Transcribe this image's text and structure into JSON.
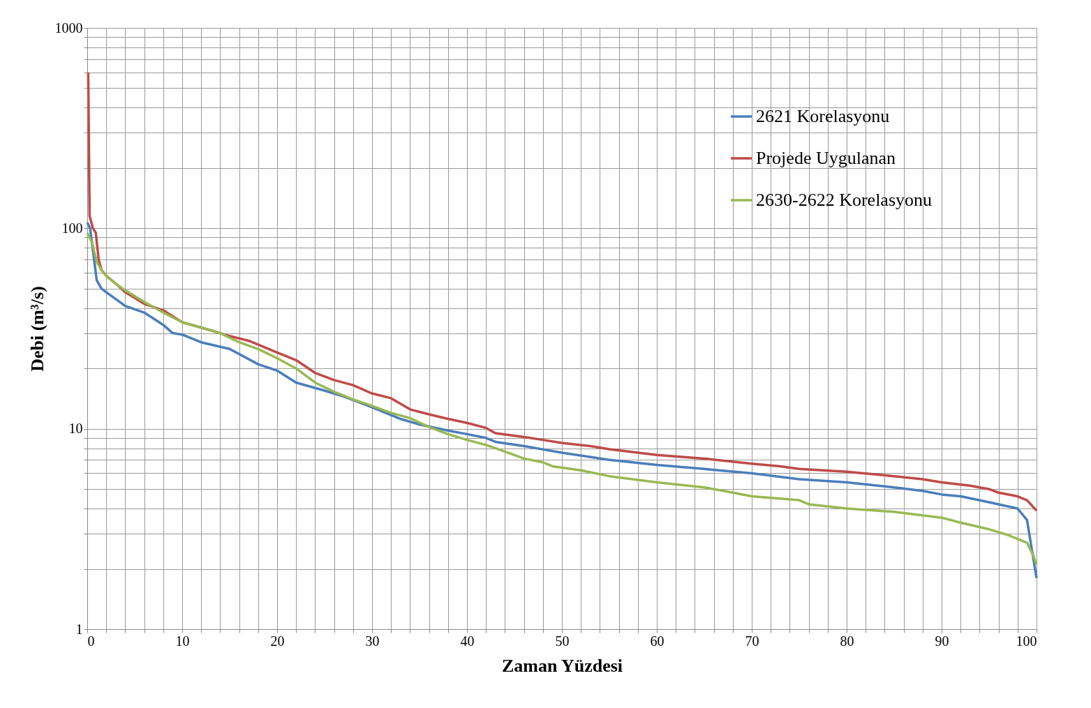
{
  "chart_data": {
    "type": "line",
    "xlabel": "Zaman Yüzdesi",
    "ylabel": "Debi (m³/s)",
    "log": "y",
    "grid": true,
    "legend": "top right",
    "line_style": "solid",
    "marker": "none",
    "xlim": [
      0,
      100
    ],
    "ylim": [
      1,
      1000
    ],
    "xticks": [
      0,
      {
        "value": 2,
        "label": null
      },
      {
        "value": 4,
        "label": null
      },
      {
        "value": 6,
        "label": null
      },
      {
        "value": 8,
        "label": null
      },
      10,
      {
        "value": 12,
        "label": null
      },
      {
        "value": 14,
        "label": null
      },
      {
        "value": 16,
        "label": null
      },
      {
        "value": 18,
        "label": null
      },
      20,
      {
        "value": 22,
        "label": null
      },
      {
        "value": 24,
        "label": null
      },
      {
        "value": 26,
        "label": null
      },
      {
        "value": 28,
        "label": null
      },
      30,
      {
        "value": 32,
        "label": null
      },
      {
        "value": 34,
        "label": null
      },
      {
        "value": 36,
        "label": null
      },
      {
        "value": 38,
        "label": null
      },
      40,
      {
        "value": 42,
        "label": null
      },
      {
        "value": 44,
        "label": null
      },
      {
        "value": 46,
        "label": null
      },
      {
        "value": 48,
        "label": null
      },
      50,
      {
        "value": 52,
        "label": null
      },
      {
        "value": 54,
        "label": null
      },
      {
        "value": 56,
        "label": null
      },
      {
        "value": 58,
        "label": null
      },
      60,
      {
        "value": 62,
        "label": null
      },
      {
        "value": 64,
        "label": null
      },
      {
        "value": 66,
        "label": null
      },
      {
        "value": 68,
        "label": null
      },
      70,
      {
        "value": 72,
        "label": null
      },
      {
        "value": 74,
        "label": null
      },
      {
        "value": 76,
        "label": null
      },
      {
        "value": 78,
        "label": null
      },
      80,
      {
        "value": 82,
        "label": null
      },
      {
        "value": 84,
        "label": null
      },
      {
        "value": 86,
        "label": null
      },
      {
        "value": 88,
        "label": null
      },
      90,
      {
        "value": 92,
        "label": null
      },
      {
        "value": 94,
        "label": null
      },
      {
        "value": 96,
        "label": null
      },
      {
        "value": 98,
        "label": null
      },
      100
    ],
    "yticks": [
      1,
      {
        "value": 2,
        "label": null
      },
      {
        "value": 3,
        "label": null
      },
      {
        "value": 4,
        "label": null
      },
      {
        "value": 5,
        "label": null
      },
      {
        "value": 6,
        "label": null
      },
      {
        "value": 7,
        "label": null
      },
      {
        "value": 8,
        "label": null
      },
      {
        "value": 9,
        "label": null
      },
      10,
      {
        "value": 20,
        "label": null
      },
      {
        "value": 30,
        "label": null
      },
      {
        "value": 40,
        "label": null
      },
      {
        "value": 50,
        "label": null
      },
      {
        "value": 60,
        "label": null
      },
      {
        "value": 70,
        "label": null
      },
      {
        "value": 80,
        "label": null
      },
      {
        "value": 90,
        "label": null
      },
      100,
      {
        "value": 200,
        "label": null
      },
      {
        "value": 300,
        "label": null
      },
      {
        "value": 400,
        "label": null
      },
      {
        "value": 500,
        "label": null
      },
      {
        "value": 600,
        "label": null
      },
      {
        "value": 700,
        "label": null
      },
      {
        "value": 800,
        "label": null
      },
      {
        "value": 900,
        "label": null
      },
      1000
    ],
    "series": [
      {
        "name": "2621 Korelasyonu",
        "color": "#4a7ebb",
        "x": [
          0,
          0.3,
          1,
          1.5,
          2,
          4,
          6,
          8,
          9,
          10,
          12,
          15,
          18,
          20,
          22,
          25,
          27,
          30,
          33,
          35,
          38,
          40,
          42,
          43,
          46,
          50,
          55,
          60,
          65,
          70,
          75,
          80,
          85,
          88,
          90,
          92,
          95,
          98,
          99,
          99.5,
          100
        ],
        "values": [
          107,
          100,
          55,
          50,
          48,
          41,
          38,
          33,
          30,
          29.5,
          27,
          25,
          21,
          19.5,
          17,
          15.5,
          14.5,
          12.8,
          11.2,
          10.5,
          9.8,
          9.4,
          9,
          8.6,
          8.2,
          7.6,
          7,
          6.6,
          6.3,
          6,
          5.6,
          5.4,
          5.1,
          4.9,
          4.7,
          4.6,
          4.3,
          4,
          3.5,
          2.5,
          1.8
        ]
      },
      {
        "name": "Projede Uygulanan",
        "color": "#be4b48",
        "x": [
          0.1,
          0.25,
          0.6,
          0.9,
          1.2,
          1.5,
          2,
          3,
          4,
          5,
          6,
          8,
          10,
          13,
          15,
          17,
          20,
          22,
          24,
          26,
          28,
          30,
          32,
          34,
          36,
          38,
          40,
          42,
          43,
          46,
          48,
          50,
          53,
          55,
          60,
          65,
          70,
          73,
          75,
          80,
          85,
          88,
          90,
          93,
          95,
          96,
          98,
          99,
          100
        ],
        "values": [
          600,
          115,
          100,
          95,
          70,
          62,
          58,
          53,
          48,
          45,
          42,
          39,
          34,
          31,
          29,
          27.5,
          24,
          22,
          19,
          17.5,
          16.5,
          15,
          14.2,
          12.5,
          11.8,
          11.2,
          10.7,
          10.1,
          9.5,
          9.1,
          8.8,
          8.5,
          8.2,
          7.9,
          7.4,
          7.1,
          6.7,
          6.5,
          6.3,
          6.1,
          5.8,
          5.6,
          5.4,
          5.2,
          5,
          4.8,
          4.6,
          4.4,
          3.9
        ]
      },
      {
        "name": "2630-2622 Korelasyonu",
        "color": "#98b954",
        "x": [
          0,
          0.5,
          1,
          1.5,
          2,
          3,
          4,
          6,
          8,
          10,
          12,
          14,
          16,
          18,
          20,
          22,
          24,
          26,
          28,
          30,
          32,
          34,
          36,
          38,
          40,
          42,
          44,
          46,
          48,
          49,
          52,
          55,
          60,
          65,
          68,
          70,
          75,
          76,
          80,
          85,
          90,
          92,
          95,
          97,
          99,
          99.7,
          100
        ],
        "values": [
          95,
          85,
          68,
          62,
          58,
          53,
          49,
          43,
          38,
          34,
          32,
          30,
          27,
          25,
          22.5,
          20,
          17,
          15.3,
          14,
          13,
          12,
          11.3,
          10.2,
          9.4,
          8.8,
          8.3,
          7.7,
          7.1,
          6.8,
          6.5,
          6.2,
          5.8,
          5.4,
          5.1,
          4.8,
          4.6,
          4.4,
          4.2,
          4,
          3.85,
          3.6,
          3.4,
          3.15,
          2.95,
          2.7,
          2.3,
          2.1
        ]
      }
    ]
  }
}
